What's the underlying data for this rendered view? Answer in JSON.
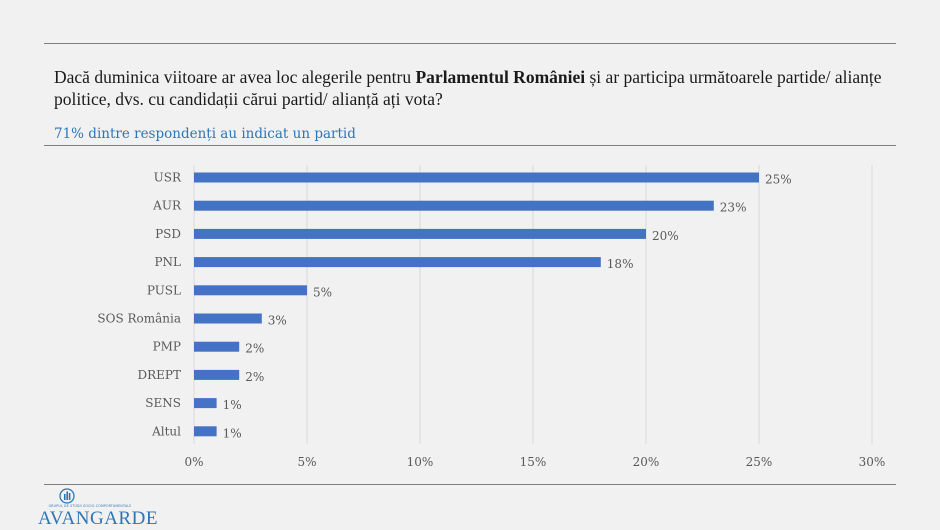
{
  "question": {
    "before": "Dacă duminica viitoare ar avea loc alegerile pentru ",
    "bold": "Parlamentul României",
    "after": " și ar participa următoarele partide/ alianțe politice, dvs. cu candidații cărui partid/ alianță ați vota?"
  },
  "subtitle": "71% dintre respondenți au indicat un partid",
  "chart_data": {
    "type": "bar",
    "orientation": "horizontal",
    "categories": [
      "USR",
      "AUR",
      "PSD",
      "PNL",
      "PUSL",
      "SOS România",
      "PMP",
      "DREPT",
      "SENS",
      "Altul"
    ],
    "values": [
      25,
      23,
      20,
      18,
      5,
      3,
      2,
      2,
      1,
      1
    ],
    "value_labels": [
      "25%",
      "23%",
      "20%",
      "18%",
      "5%",
      "3%",
      "2%",
      "2%",
      "1%",
      "1%"
    ],
    "xlim": [
      0,
      30
    ],
    "x_ticks": [
      0,
      5,
      10,
      15,
      20,
      25,
      30
    ],
    "x_tick_labels": [
      "0%",
      "5%",
      "10%",
      "15%",
      "20%",
      "25%",
      "30%"
    ],
    "grid": "vertical",
    "color": "#4472c4"
  },
  "logo": {
    "tagline": "GRUPUL DE STUDII SOCIO-COMPORTAMENTALE",
    "name": "AVANGARDE"
  }
}
